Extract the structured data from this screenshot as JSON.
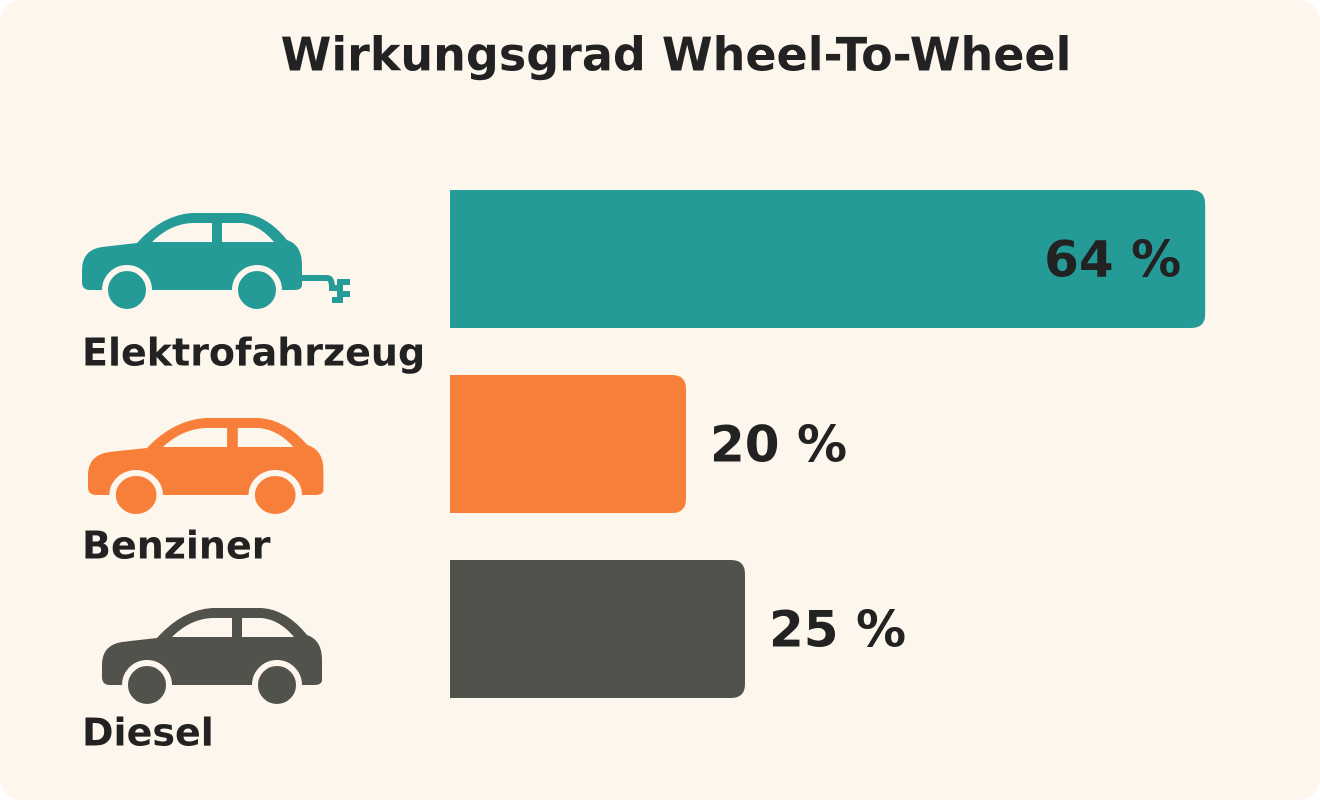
{
  "chart_data": {
    "type": "bar",
    "orientation": "horizontal",
    "title": "Wirkungsgrad Wheel-To-Wheel",
    "categories": [
      "Elektrofahrzeug",
      "Benziner",
      "Diesel"
    ],
    "values": [
      64,
      20,
      25
    ],
    "value_labels": [
      "64 %",
      "20 %",
      "25 %"
    ],
    "colors": [
      "#259b98",
      "#f77f3a",
      "#52524c"
    ]
  }
}
